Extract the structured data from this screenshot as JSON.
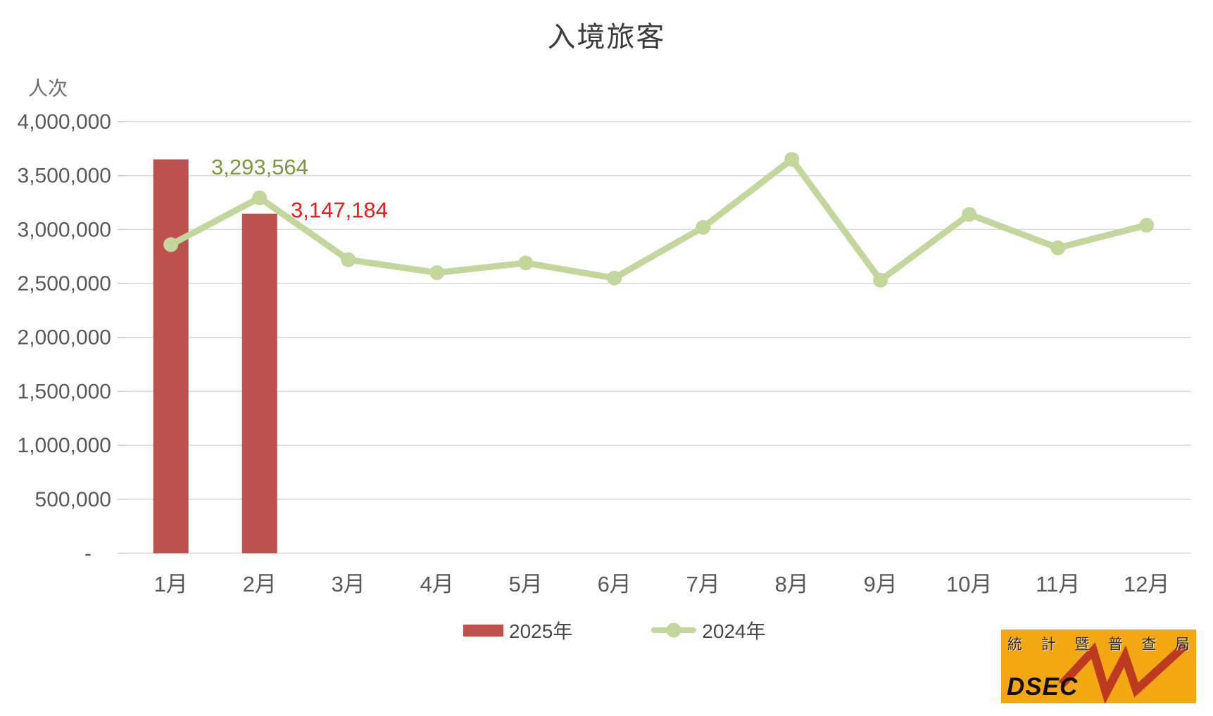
{
  "chart_data": {
    "type": "combo",
    "title": "入境旅客",
    "ylabel": "人次",
    "categories": [
      "1月",
      "2月",
      "3月",
      "4月",
      "5月",
      "6月",
      "7月",
      "8月",
      "9月",
      "10月",
      "11月",
      "12月"
    ],
    "series": [
      {
        "name": "2025年",
        "type": "bar",
        "color": "#BD514E",
        "values": [
          3650000,
          3147184
        ]
      },
      {
        "name": "2024年",
        "type": "line",
        "color": "#C3D69B",
        "marker": "circle",
        "values": [
          2860000,
          3293564,
          2720000,
          2600000,
          2690000,
          2550000,
          3020000,
          3650000,
          2530000,
          3140000,
          2830000,
          3040000
        ]
      }
    ],
    "annotations": [
      {
        "series": "2024年",
        "category": "2月",
        "text": "3,293,564",
        "color": "#79983F",
        "x": 300,
        "y": 248
      },
      {
        "series": "2025年",
        "category": "2月",
        "text": "3,147,184",
        "color": "#EE1C1C",
        "x": 413,
        "y": 309
      }
    ],
    "y_axis": {
      "min": 0,
      "max": 4000000,
      "step": 500000,
      "tick_labels": [
        "4,000,000",
        "3,500,000",
        "3,000,000",
        "2,500,000",
        "2,000,000",
        "1,500,000",
        "1,000,000",
        "500,000",
        "-"
      ]
    },
    "grid": true,
    "legend_position": "bottom-center"
  },
  "legend": {
    "items": [
      {
        "label": "2025年",
        "swatch": "bar"
      },
      {
        "label": "2024年",
        "swatch": "line-with-marker"
      }
    ]
  },
  "logo": {
    "agency_name": "統計暨普查局",
    "agency_name_chars": [
      "統",
      "計",
      "暨",
      "普",
      "查",
      "局"
    ],
    "acronym": "DSEC",
    "bg_color": "#F3A712",
    "zigzag_color": "#BE3A1E"
  }
}
